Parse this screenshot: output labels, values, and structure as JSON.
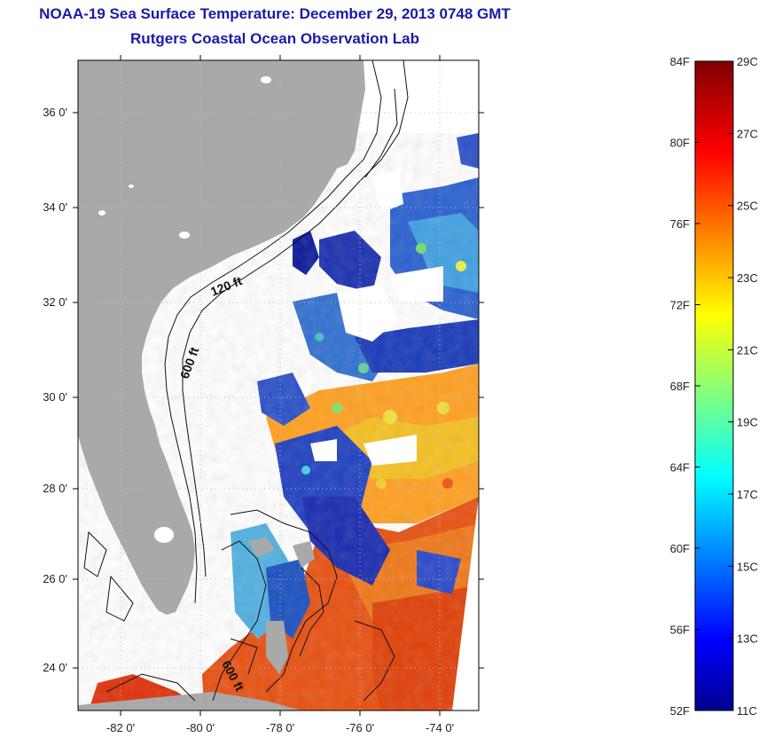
{
  "title": "NOAA-19 Sea Surface Temperature:  December 29, 2013 0748 GMT",
  "subtitle": "Rutgers Coastal Ocean Observation Lab",
  "map": {
    "lat_ticks": [
      "36 0'",
      "34 0'",
      "32 0'",
      "30 0'",
      "28 0'",
      "26 0'",
      "24 0'"
    ],
    "lon_ticks": [
      "-82 0'",
      "-80 0'",
      "-78 0'",
      "-76 0'",
      "-74 0'"
    ],
    "contour_labels": [
      "120 ft",
      "600 ft",
      "600 ft"
    ],
    "land_color": "#a9a9a9"
  },
  "colorbar": {
    "fahrenheit_labels": [
      "84F",
      "80F",
      "76F",
      "72F",
      "68F",
      "64F",
      "60F",
      "56F",
      "52F"
    ],
    "celsius_labels": [
      "29C",
      "27C",
      "25C",
      "23C",
      "21C",
      "19C",
      "17C",
      "15C",
      "13C",
      "11C"
    ],
    "colormap": "jet"
  }
}
